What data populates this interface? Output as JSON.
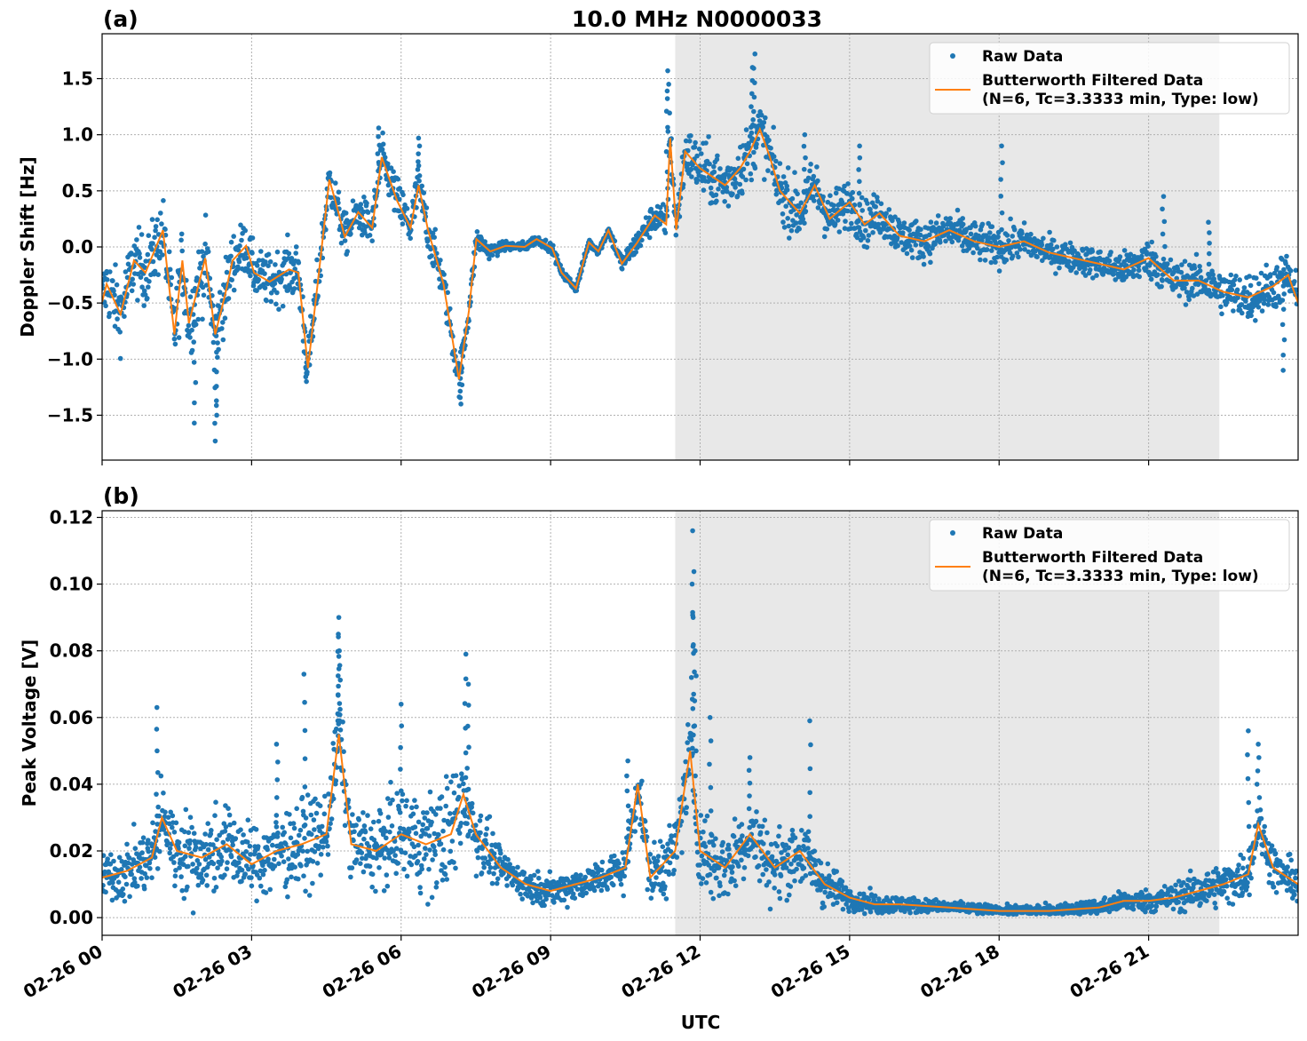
{
  "figure": {
    "title": "10.0 MHz N0000033",
    "xlabel": "UTC",
    "shade_color": "#e8e8e8",
    "raw_color": "#1f77b4",
    "filtered_color": "#ff7f0e"
  },
  "chart_data": [
    {
      "panel_label": "(a)",
      "type": "scatter+line",
      "ylabel": "Doppler Shift [Hz]",
      "xlim": [
        "02-26 00:00",
        "02-27 00:00"
      ],
      "ylim": [
        -1.9,
        1.9
      ],
      "grid": true,
      "legend_placement": "top-right",
      "x_ticks_hours": [
        0,
        3,
        6,
        9,
        12,
        15,
        18,
        21
      ],
      "x_tick_labels": [
        "02-26 00",
        "02-26 03",
        "02-26 06",
        "02-26 09",
        "02-26 12",
        "02-26 15",
        "02-26 18",
        "02-26 21"
      ],
      "y_ticks": [
        -1.5,
        -1.0,
        -0.5,
        0.0,
        0.5,
        1.0,
        1.5
      ],
      "y_tick_labels": [
        "−1.5",
        "−1.0",
        "−0.5",
        "0.0",
        "0.5",
        "1.0",
        "1.5"
      ],
      "shaded_interval_hours": [
        11.5,
        22.42
      ],
      "legend": [
        "Raw Data",
        "Butterworth Filtered Data",
        "(N=6, Tc=3.3333 min, Type: low)"
      ],
      "series": [
        {
          "name": "Butterworth Filtered Data (N=6, Tc=3.3333 min, Type: low)",
          "kind": "line",
          "x_hours": [
            0,
            0.09,
            0.37,
            0.64,
            0.87,
            1.22,
            1.45,
            1.61,
            1.74,
            2.07,
            2.27,
            2.46,
            2.62,
            2.89,
            3.05,
            3.36,
            3.75,
            3.94,
            4.13,
            4.33,
            4.56,
            4.68,
            4.87,
            5.14,
            5.42,
            5.61,
            5.92,
            6.19,
            6.35,
            6.54,
            6.85,
            7.16,
            7.36,
            7.51,
            7.79,
            8.1,
            8.48,
            8.72,
            9.03,
            9.22,
            9.51,
            9.77,
            9.96,
            10.16,
            10.43,
            10.74,
            11.09,
            11.32,
            11.4,
            11.52,
            11.7,
            12.0,
            12.5,
            12.8,
            13.0,
            13.2,
            13.4,
            13.6,
            14.0,
            14.3,
            14.6,
            15.0,
            15.3,
            15.6,
            16.0,
            16.5,
            17.0,
            17.5,
            18.0,
            18.5,
            19.0,
            19.5,
            20.0,
            20.5,
            21.0,
            21.5,
            22.0,
            22.5,
            23.0,
            23.5,
            23.8,
            24.0
          ],
          "y": [
            -0.49,
            -0.33,
            -0.6,
            -0.12,
            -0.23,
            0.15,
            -0.78,
            -0.12,
            -0.68,
            -0.1,
            -0.78,
            -0.44,
            -0.12,
            0.01,
            -0.23,
            -0.31,
            -0.2,
            -0.23,
            -1.08,
            -0.31,
            0.6,
            0.41,
            0.09,
            0.31,
            0.17,
            0.8,
            0.41,
            0.17,
            0.55,
            0.15,
            -0.33,
            -1.18,
            -0.57,
            0.07,
            -0.04,
            0.01,
            0.0,
            0.07,
            -0.01,
            -0.23,
            -0.37,
            0.04,
            -0.04,
            0.15,
            -0.15,
            0.04,
            0.28,
            0.2,
            0.97,
            0.15,
            0.85,
            0.7,
            0.55,
            0.7,
            0.85,
            1.05,
            0.8,
            0.5,
            0.3,
            0.55,
            0.25,
            0.4,
            0.2,
            0.3,
            0.1,
            0.05,
            0.15,
            0.05,
            0.0,
            0.05,
            -0.05,
            -0.1,
            -0.15,
            -0.2,
            -0.1,
            -0.3,
            -0.3,
            -0.4,
            -0.45,
            -0.35,
            -0.25,
            -0.5
          ]
        },
        {
          "name": "Raw Data",
          "kind": "scatter",
          "scatter_halfwidth_by_hour": [
            0.35,
            0.35,
            0.4,
            0.25,
            0.3,
            0.2,
            0.25,
            0.2,
            0.05,
            0.05,
            0.04,
            0.15,
            0.3,
            0.3,
            0.3,
            0.25,
            0.2,
            0.2,
            0.2,
            0.15,
            0.15,
            0.2,
            0.2,
            0.25,
            0.25
          ],
          "extreme_points": [
            [
              11.35,
              1.57
            ],
            [
              11.37,
              1.45
            ],
            [
              13.1,
              1.72
            ],
            [
              13.05,
              1.6
            ],
            [
              2.27,
              -1.73
            ],
            [
              1.85,
              -1.57
            ],
            [
              2.3,
              -1.5
            ],
            [
              5.55,
              1.06
            ],
            [
              6.35,
              0.97
            ],
            [
              18.05,
              0.9
            ],
            [
              15.2,
              0.9
            ],
            [
              7.2,
              -1.4
            ],
            [
              23.7,
              -1.1
            ],
            [
              21.3,
              0.45
            ],
            [
              22.2,
              0.22
            ],
            [
              4.1,
              -1.2
            ],
            [
              14.1,
              1.0
            ]
          ]
        }
      ]
    },
    {
      "panel_label": "(b)",
      "type": "scatter+line",
      "ylabel": "Peak Voltage [V]",
      "xlim": [
        "02-26 00:00",
        "02-27 00:00"
      ],
      "ylim": [
        -0.0053,
        0.122
      ],
      "grid": true,
      "legend_placement": "top-right",
      "x_ticks_hours": [
        0,
        3,
        6,
        9,
        12,
        15,
        18,
        21
      ],
      "x_tick_labels": [
        "02-26 00",
        "02-26 03",
        "02-26 06",
        "02-26 09",
        "02-26 12",
        "02-26 15",
        "02-26 18",
        "02-26 21"
      ],
      "y_ticks": [
        0.0,
        0.02,
        0.04,
        0.06,
        0.08,
        0.1,
        0.12
      ],
      "y_tick_labels": [
        "0.00",
        "0.02",
        "0.04",
        "0.06",
        "0.08",
        "0.10",
        "0.12"
      ],
      "shaded_interval_hours": [
        11.5,
        22.42
      ],
      "legend": [
        "Raw Data",
        "Butterworth Filtered Data",
        "(N=6, Tc=3.3333 min, Type: low)"
      ],
      "series": [
        {
          "name": "Butterworth Filtered Data (N=6, Tc=3.3333 min, Type: low)",
          "kind": "line",
          "x_hours": [
            0,
            0.5,
            1,
            1.2,
            1.5,
            2,
            2.5,
            3,
            3.5,
            4,
            4.5,
            4.75,
            5,
            5.5,
            6,
            6.5,
            7,
            7.25,
            7.5,
            8,
            8.5,
            9,
            9.5,
            10,
            10.5,
            10.75,
            11,
            11.5,
            11.8,
            12,
            12.5,
            13,
            13.5,
            14,
            14.5,
            15,
            15.5,
            16,
            17,
            18,
            19,
            20,
            20.5,
            21,
            21.5,
            22,
            22.5,
            23,
            23.2,
            23.5,
            24
          ],
          "y": [
            0.012,
            0.014,
            0.018,
            0.03,
            0.02,
            0.018,
            0.022,
            0.016,
            0.02,
            0.022,
            0.025,
            0.055,
            0.022,
            0.02,
            0.025,
            0.022,
            0.025,
            0.037,
            0.025,
            0.015,
            0.01,
            0.008,
            0.01,
            0.012,
            0.015,
            0.04,
            0.012,
            0.02,
            0.05,
            0.02,
            0.015,
            0.025,
            0.015,
            0.02,
            0.01,
            0.006,
            0.004,
            0.004,
            0.003,
            0.002,
            0.002,
            0.003,
            0.005,
            0.005,
            0.006,
            0.008,
            0.01,
            0.013,
            0.028,
            0.015,
            0.01
          ]
        },
        {
          "name": "Raw Data",
          "kind": "scatter",
          "scatter_halfwidth_by_hour": [
            0.008,
            0.012,
            0.015,
            0.012,
            0.015,
            0.012,
            0.015,
            0.02,
            0.006,
            0.005,
            0.006,
            0.01,
            0.015,
            0.012,
            0.012,
            0.004,
            0.003,
            0.002,
            0.002,
            0.002,
            0.003,
            0.004,
            0.006,
            0.008,
            0.007
          ],
          "extreme_points": [
            [
              4.75,
              0.09
            ],
            [
              4.74,
              0.085
            ],
            [
              4.76,
              0.08
            ],
            [
              11.85,
              0.116
            ],
            [
              11.84,
              0.1
            ],
            [
              11.86,
              0.09
            ],
            [
              11.9,
              0.08
            ],
            [
              7.3,
              0.079
            ],
            [
              7.35,
              0.07
            ],
            [
              4.05,
              0.073
            ],
            [
              6.0,
              0.064
            ],
            [
              1.1,
              0.063
            ],
            [
              14.2,
              0.059
            ],
            [
              23.0,
              0.056
            ],
            [
              23.2,
              0.052
            ],
            [
              12.2,
              0.06
            ],
            [
              3.5,
              0.052
            ],
            [
              10.55,
              0.047
            ],
            [
              13.0,
              0.048
            ]
          ]
        }
      ]
    }
  ]
}
